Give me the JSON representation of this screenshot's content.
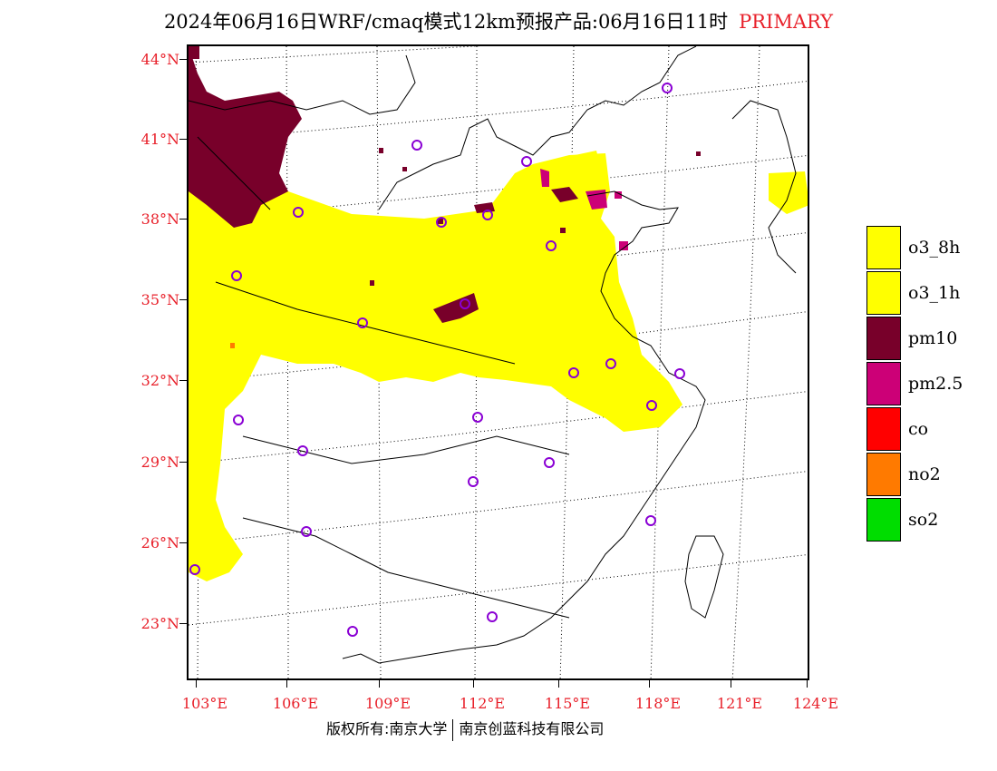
{
  "title": {
    "main": "2024年06月16日WRF/cmaq模式12km预报产品:06月16日11时",
    "tag": "PRIMARY"
  },
  "latitudes": [
    "44°N",
    "41°N",
    "38°N",
    "35°N",
    "32°N",
    "29°N",
    "26°N",
    "23°N"
  ],
  "longitudes": [
    "103°E",
    "106°E",
    "109°E",
    "112°E",
    "115°E",
    "118°E",
    "121°E",
    "124°E"
  ],
  "legend": [
    {
      "label": "o3_8h",
      "color": "#ffff00"
    },
    {
      "label": "o3_1h",
      "color": "#ffff00"
    },
    {
      "label": "pm10",
      "color": "#78002a"
    },
    {
      "label": "pm2.5",
      "color": "#cc0077"
    },
    {
      "label": "co",
      "color": "#ff0000"
    },
    {
      "label": "no2",
      "color": "#ff7a00"
    },
    {
      "label": "so2",
      "color": "#00dd00"
    }
  ],
  "footer": {
    "left": "版权所有:南京大学",
    "right": "南京创蓝科技有限公司"
  }
}
